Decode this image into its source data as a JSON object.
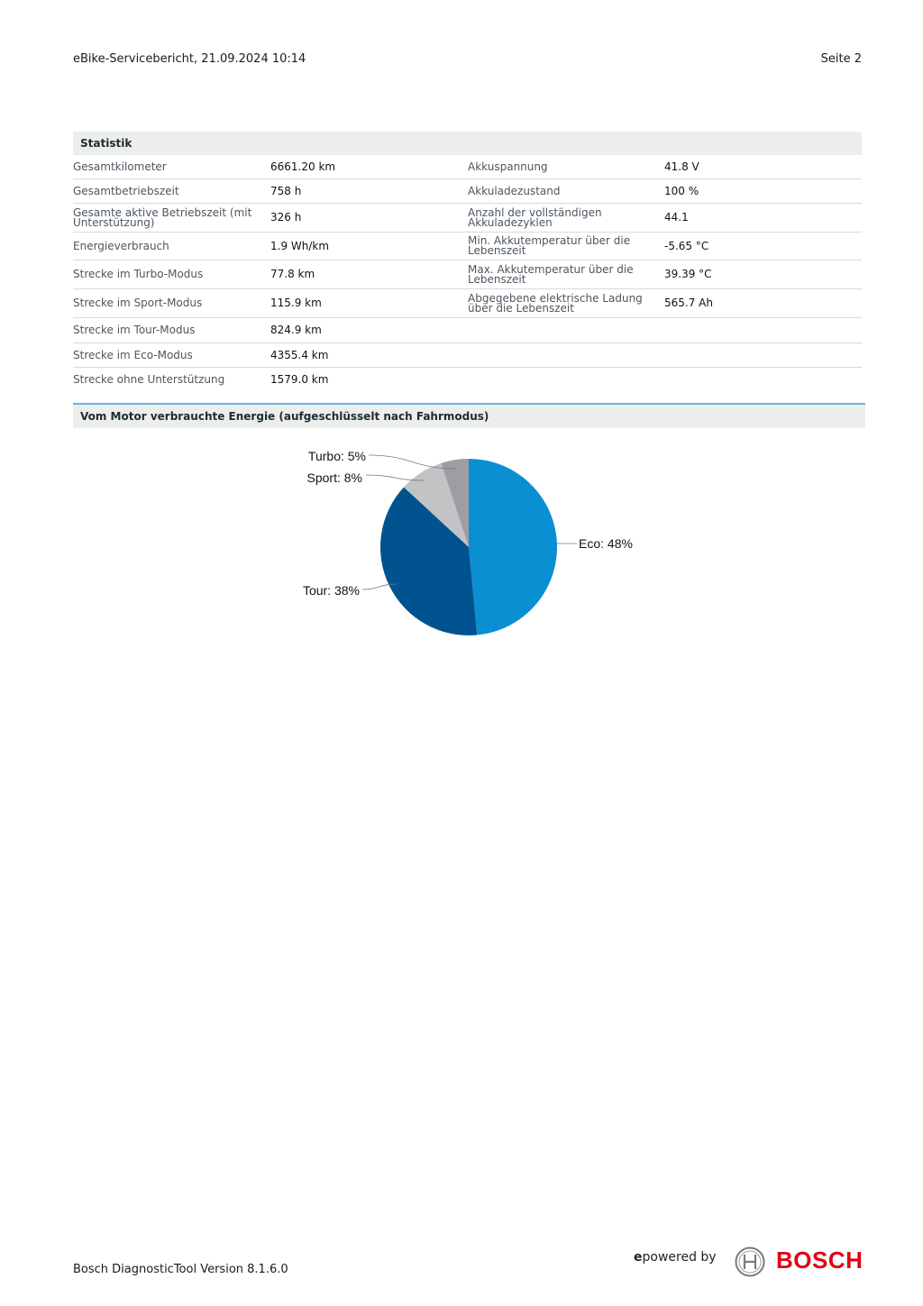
{
  "header": {
    "report_title": "eBike-Servicebericht, 21.09.2024 10:14",
    "page_label": "Seite 2"
  },
  "statistics": {
    "title": "Statistik",
    "rows": [
      {
        "l1": "Gesamtkilometer",
        "v1": "6661.20 km",
        "l2": "Akkuspannung",
        "v2": "41.8 V"
      },
      {
        "l1": "Gesamtbetriebszeit",
        "v1": "758 h",
        "l2": "Akkuladezustand",
        "v2": "100 %"
      },
      {
        "l1": "Gesamte aktive Betriebszeit (mit Unterstützung)",
        "v1": "326 h",
        "l2": "Anzahl der vollständigen Akkuladezyklen",
        "v2": "44.1"
      },
      {
        "l1": "Energieverbrauch",
        "v1": "1.9 Wh/km",
        "l2": "Min. Akkutemperatur über die Lebenszeit",
        "v2": "-5.65 °C"
      },
      {
        "l1": "Strecke im Turbo-Modus",
        "v1": "77.8 km",
        "l2": "Max. Akkutemperatur über die Lebenszeit",
        "v2": "39.39 °C"
      },
      {
        "l1": "Strecke im Sport-Modus",
        "v1": "115.9 km",
        "l2": "Abgegebene elektrische Ladung über die Lebenszeit",
        "v2": "565.7 Ah"
      },
      {
        "l1": "Strecke im Tour-Modus",
        "v1": "824.9 km",
        "l2": "",
        "v2": ""
      },
      {
        "l1": "Strecke im Eco-Modus",
        "v1": "4355.4 km",
        "l2": "",
        "v2": ""
      },
      {
        "l1": "Strecke ohne Unterstützung",
        "v1": "1579.0 km",
        "l2": "",
        "v2": ""
      }
    ]
  },
  "energy_chart": {
    "title": "Vom Motor verbrauchte Energie (aufgeschlüsselt nach Fahrmodus)"
  },
  "chart_data": {
    "type": "pie",
    "title": "Vom Motor verbrauchte Energie (aufgeschlüsselt nach Fahrmodus)",
    "slices": [
      {
        "label": "Eco: 48%",
        "name": "Eco",
        "value": 48,
        "color": "#0a8fd3"
      },
      {
        "label": "Tour: 38%",
        "name": "Tour",
        "value": 38,
        "color": "#00538f"
      },
      {
        "label": "Sport: 8%",
        "name": "Sport",
        "value": 8,
        "color": "#c1c3c5"
      },
      {
        "label": "Turbo: 5%",
        "name": "Turbo",
        "value": 5,
        "color": "#9d9ea3"
      }
    ]
  },
  "footer": {
    "version": "Bosch DiagnosticTool Version 8.1.6.0",
    "powered_e": "e",
    "powered_rest": "powered by",
    "brand": "BOSCH"
  },
  "colors": {
    "section_bg": "#eceeec",
    "accent_line": "#5eb8e6",
    "brand_red": "#e20015"
  }
}
